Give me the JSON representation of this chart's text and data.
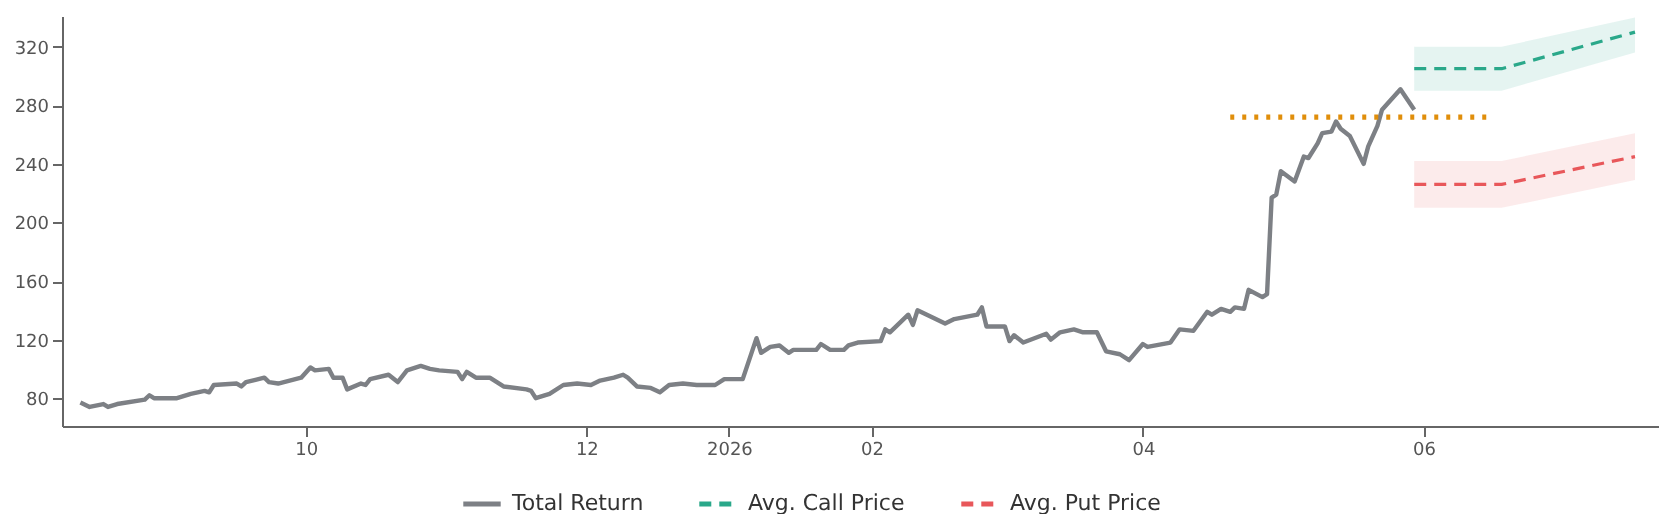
{
  "chart_data": {
    "type": "line",
    "xlim": [
      "2025-08-09",
      "2026-07-22"
    ],
    "ylim": [
      61,
      341
    ],
    "yticks": [
      80,
      120,
      160,
      200,
      240,
      280,
      320
    ],
    "xticks": [
      {
        "value": "2025-10-01",
        "label": "10"
      },
      {
        "value": "2025-12-01",
        "label": "12"
      },
      {
        "value": "2026-01-01",
        "label": "2026"
      },
      {
        "value": "2026-02-01",
        "label": "02"
      },
      {
        "value": "2026-04-01",
        "label": "04"
      },
      {
        "value": "2026-06-01",
        "label": "06"
      }
    ],
    "grid": false,
    "legend": "bottom",
    "series": [
      {
        "name": "Total Return",
        "color": "#7d8085",
        "line_style": "solid",
        "x": [
          "2025-08-13",
          "2025-08-15",
          "2025-08-18",
          "2025-08-19",
          "2025-08-21",
          "2025-08-27",
          "2025-08-28",
          "2025-08-29",
          "2025-09-03",
          "2025-09-06",
          "2025-09-09",
          "2025-09-10",
          "2025-09-11",
          "2025-09-16",
          "2025-09-17",
          "2025-09-18",
          "2025-09-22",
          "2025-09-23",
          "2025-09-25",
          "2025-09-30",
          "2025-10-02",
          "2025-10-03",
          "2025-10-06",
          "2025-10-07",
          "2025-10-09",
          "2025-10-10",
          "2025-10-13",
          "2025-10-14",
          "2025-10-15",
          "2025-10-19",
          "2025-10-21",
          "2025-10-23",
          "2025-10-26",
          "2025-10-28",
          "2025-10-30",
          "2025-11-03",
          "2025-11-04",
          "2025-11-05",
          "2025-11-07",
          "2025-11-10",
          "2025-11-13",
          "2025-11-18",
          "2025-11-19",
          "2025-11-20",
          "2025-11-23",
          "2025-11-26",
          "2025-11-29",
          "2025-12-02",
          "2025-12-04",
          "2025-12-07",
          "2025-12-09",
          "2025-12-10",
          "2025-12-12",
          "2025-12-15",
          "2025-12-17",
          "2025-12-19",
          "2025-12-22",
          "2025-12-25",
          "2025-12-29",
          "2025-12-31",
          "2026-01-04",
          "2026-01-07",
          "2026-01-08",
          "2026-01-10",
          "2026-01-12",
          "2026-01-14",
          "2026-01-15",
          "2026-01-20",
          "2026-01-21",
          "2026-01-23",
          "2026-01-26",
          "2026-01-27",
          "2026-01-29",
          "2026-02-03",
          "2026-02-04",
          "2026-02-05",
          "2026-02-09",
          "2026-02-10",
          "2026-02-11",
          "2026-02-17",
          "2026-02-19",
          "2026-02-24",
          "2026-02-25",
          "2026-02-26",
          "2026-03-02",
          "2026-03-03",
          "2026-03-04",
          "2026-03-06",
          "2026-03-11",
          "2026-03-12",
          "2026-03-14",
          "2026-03-17",
          "2026-03-18",
          "2026-03-19",
          "2026-03-22",
          "2026-03-24",
          "2026-03-27",
          "2026-03-29",
          "2026-04-01",
          "2026-04-02",
          "2026-04-07",
          "2026-04-09",
          "2026-04-12",
          "2026-04-15",
          "2026-04-16",
          "2026-04-18",
          "2026-04-20",
          "2026-04-21",
          "2026-04-23",
          "2026-04-24",
          "2026-04-27",
          "2026-04-28",
          "2026-04-29",
          "2026-04-30",
          "2026-05-01",
          "2026-05-04",
          "2026-05-06",
          "2026-05-07",
          "2026-05-09",
          "2026-05-10",
          "2026-05-12",
          "2026-05-13",
          "2026-05-14",
          "2026-05-16",
          "2026-05-19",
          "2026-05-20",
          "2026-05-22",
          "2026-05-23",
          "2026-05-27",
          "2026-05-30"
        ],
        "values": [
          77,
          74,
          76,
          74,
          76,
          79,
          82,
          80,
          80,
          83,
          85,
          84,
          89,
          90,
          88,
          91,
          94,
          91,
          90,
          94,
          101,
          99,
          100,
          94,
          94,
          86,
          90,
          89,
          93,
          96,
          91,
          99,
          102,
          100,
          99,
          98,
          93,
          98,
          94,
          94,
          88,
          86,
          85,
          80,
          83,
          89,
          90,
          89,
          92,
          94,
          96,
          94,
          88,
          87,
          84,
          89,
          90,
          89,
          89,
          93,
          93,
          121,
          111,
          115,
          116,
          111,
          113,
          113,
          117,
          113,
          113,
          116,
          118,
          119,
          127,
          125,
          137,
          130,
          140,
          131,
          134,
          137,
          142,
          129,
          129,
          119,
          123,
          118,
          124,
          120,
          125,
          127,
          126,
          125,
          125,
          112,
          110,
          106,
          117,
          115,
          118,
          127,
          126,
          139,
          137,
          141,
          139,
          142,
          141,
          154,
          149,
          151,
          217,
          219,
          235,
          228,
          245,
          244,
          254,
          261,
          262,
          269,
          264,
          259,
          240,
          252,
          266,
          277,
          291,
          277
        ]
      },
      {
        "name": "Avg. Call Price",
        "color": "#2aa88a",
        "line_style": "dashed",
        "x": [
          "2026-05-30",
          "2026-06-18",
          "2026-07-17"
        ],
        "values": [
          305,
          305,
          330
        ],
        "lower": [
          290,
          290,
          316
        ],
        "upper": [
          320,
          320,
          340
        ]
      },
      {
        "name": "Avg. Put Price",
        "color": "#e8575a",
        "line_style": "dashed",
        "x": [
          "2026-05-30",
          "2026-06-18",
          "2026-07-17"
        ],
        "values": [
          226,
          226,
          245
        ],
        "lower": [
          210,
          210,
          229
        ],
        "upper": [
          242,
          242,
          261
        ]
      },
      {
        "color": "#e08e0b",
        "line_style": "dotted",
        "x": [
          "2026-04-20",
          "2026-06-15"
        ],
        "values": [
          272,
          272
        ]
      }
    ]
  }
}
